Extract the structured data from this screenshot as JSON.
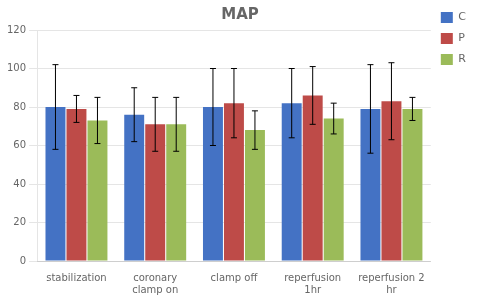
{
  "chart_data": {
    "type": "bar",
    "title": "MAP",
    "categories": [
      "stabilization",
      "coronary\nclamp on",
      "clamp off",
      "reperfusion\n1hr",
      "reperfusion 2\nhr"
    ],
    "series": [
      {
        "name": "C",
        "color": "#4472C4",
        "values": [
          80,
          76,
          80,
          82,
          79
        ],
        "errors": [
          22,
          14,
          20,
          18,
          23
        ]
      },
      {
        "name": "P",
        "color": "#BE4B48",
        "values": [
          79,
          71,
          82,
          86,
          83
        ],
        "errors": [
          7,
          14,
          18,
          15,
          20
        ]
      },
      {
        "name": "R",
        "color": "#9BBB59",
        "values": [
          73,
          71,
          68,
          74,
          79
        ],
        "errors": [
          12,
          14,
          10,
          8,
          6
        ]
      }
    ],
    "ylim": [
      0,
      120
    ],
    "yticks": [
      0,
      20,
      40,
      60,
      80,
      100,
      120
    ],
    "grid": true,
    "legend": "right"
  }
}
